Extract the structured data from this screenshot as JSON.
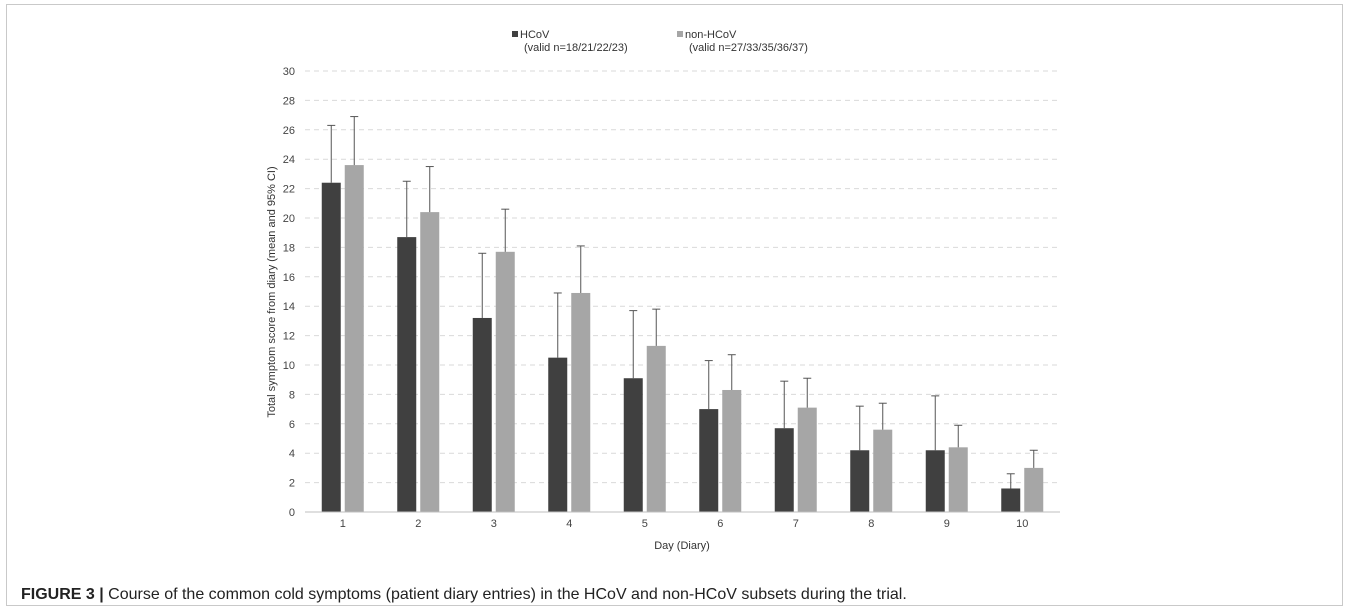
{
  "caption": {
    "label": "FIGURE 3 |",
    "text": "Course of the common cold symptoms (patient diary entries) in the HCoV and non-HCoV subsets during the trial."
  },
  "chart_data": {
    "type": "bar",
    "title": "",
    "xlabel": "Day (Diary)",
    "ylabel": "Total symptom score from diary (mean and 95% CI)",
    "categories": [
      "1",
      "2",
      "3",
      "4",
      "5",
      "6",
      "7",
      "8",
      "9",
      "10"
    ],
    "ylim": [
      0,
      30
    ],
    "yticks": [
      0,
      2,
      4,
      6,
      8,
      10,
      12,
      14,
      16,
      18,
      20,
      22,
      24,
      26,
      28,
      30
    ],
    "grid": "horizontal dashed",
    "legend_position": "top-center",
    "series": [
      {
        "name": "HCoV",
        "legend_note": "(valid n=18/21/22/23)",
        "color": "#404040",
        "values": [
          22.4,
          18.7,
          13.2,
          10.5,
          9.1,
          7.0,
          5.7,
          4.2,
          4.2,
          1.6
        ],
        "ci_upper": [
          26.3,
          22.5,
          17.6,
          14.9,
          13.7,
          10.3,
          8.9,
          7.2,
          7.9,
          2.6
        ]
      },
      {
        "name": "non-HCoV",
        "legend_note": "(valid n=27/33/35/36/37)",
        "color": "#a6a6a6",
        "values": [
          23.6,
          20.4,
          17.7,
          14.9,
          11.3,
          8.3,
          7.1,
          5.6,
          4.4,
          3.0
        ],
        "ci_upper": [
          26.9,
          23.5,
          20.6,
          18.1,
          13.8,
          10.7,
          9.1,
          7.4,
          5.9,
          4.2
        ]
      }
    ]
  }
}
